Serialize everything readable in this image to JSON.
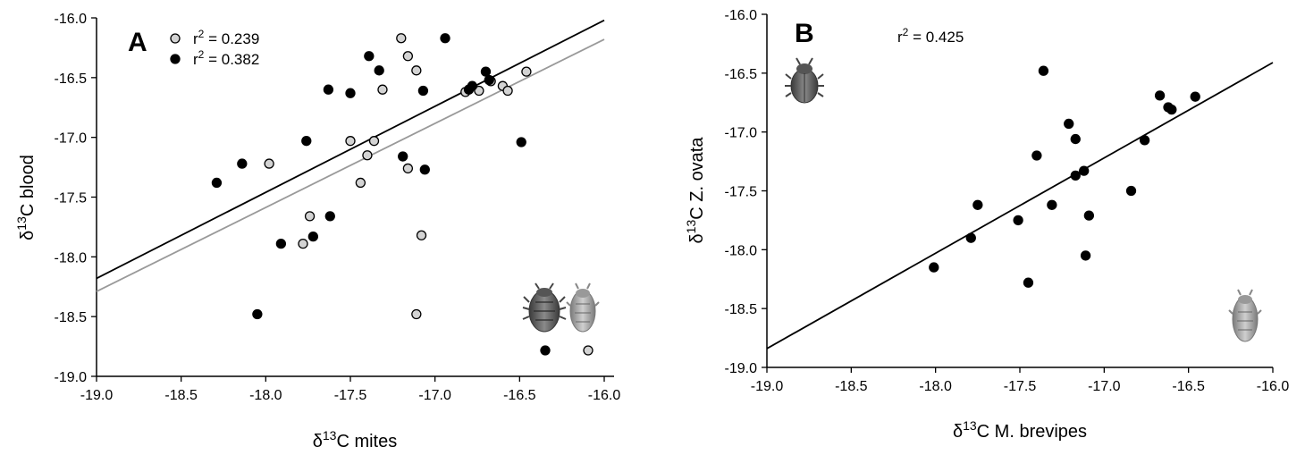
{
  "chart_data": [
    {
      "type": "scatter",
      "panel_label": "A",
      "xlabel_prefix": "δ",
      "xlabel_sup": "13",
      "xlabel_main": "C mites",
      "ylabel_prefix": "δ",
      "ylabel_sup": "13",
      "ylabel_main": "C blood",
      "xlim": [
        -19.0,
        -16.0
      ],
      "ylim": [
        -19.0,
        -16.0
      ],
      "xticks": [
        "-19.0",
        "-18.5",
        "-18.0",
        "-17.5",
        "-17.0",
        "-16.5",
        "-16.0"
      ],
      "yticks": [
        "-16.0",
        "-16.5",
        "-17.0",
        "-17.5",
        "-18.0",
        "-18.5",
        "-19.0"
      ],
      "grid": false,
      "legend": [
        {
          "prefix": "r",
          "sup": "2",
          "text": " = 0.239",
          "fill": "#d3d3d3"
        },
        {
          "prefix": "r",
          "sup": "2",
          "text": " = 0.382",
          "fill": "#000000"
        }
      ],
      "series": [
        {
          "fill": "#d3d3d3",
          "points": [
            [
              -17.2,
              -16.17
            ],
            [
              -17.16,
              -16.32
            ],
            [
              -17.11,
              -16.44
            ],
            [
              -17.31,
              -16.6
            ],
            [
              -16.46,
              -16.45
            ],
            [
              -16.6,
              -16.57
            ],
            [
              -16.57,
              -16.61
            ],
            [
              -16.74,
              -16.61
            ],
            [
              -16.82,
              -16.62
            ],
            [
              -16.67,
              -16.53
            ],
            [
              -17.5,
              -17.03
            ],
            [
              -17.36,
              -17.03
            ],
            [
              -17.4,
              -17.15
            ],
            [
              -17.16,
              -17.26
            ],
            [
              -17.44,
              -17.38
            ],
            [
              -17.98,
              -17.22
            ],
            [
              -17.74,
              -17.66
            ],
            [
              -17.78,
              -17.89
            ],
            [
              -17.08,
              -17.82
            ],
            [
              -17.11,
              -18.48
            ]
          ],
          "fit": {
            "x": [
              -19.0,
              -16.0
            ],
            "y": [
              -18.29,
              -16.18
            ],
            "color": "#999999"
          }
        },
        {
          "fill": "#000000",
          "points": [
            [
              -16.94,
              -16.17
            ],
            [
              -17.39,
              -16.32
            ],
            [
              -17.33,
              -16.44
            ],
            [
              -17.07,
              -16.61
            ],
            [
              -17.5,
              -16.63
            ],
            [
              -17.63,
              -16.6
            ],
            [
              -16.78,
              -16.57
            ],
            [
              -16.8,
              -16.6
            ],
            [
              -16.7,
              -16.45
            ],
            [
              -16.68,
              -16.52
            ],
            [
              -17.76,
              -17.03
            ],
            [
              -16.49,
              -17.04
            ],
            [
              -17.19,
              -17.16
            ],
            [
              -17.06,
              -17.27
            ],
            [
              -18.14,
              -17.22
            ],
            [
              -18.29,
              -17.38
            ],
            [
              -17.62,
              -17.66
            ],
            [
              -17.72,
              -17.83
            ],
            [
              -17.91,
              -17.89
            ],
            [
              -18.05,
              -18.48
            ]
          ],
          "fit": {
            "x": [
              -19.0,
              -16.0
            ],
            "y": [
              -18.18,
              -16.02
            ],
            "color": "#000000"
          }
        }
      ],
      "icon_markers": [
        {
          "icon": "mite-icon",
          "fill": "#000000"
        },
        {
          "icon": "mite-icon",
          "fill": "#d3d3d3"
        }
      ]
    },
    {
      "type": "scatter",
      "panel_label": "B",
      "xlabel_prefix": "δ",
      "xlabel_sup": "13",
      "xlabel_main": "C M. brevipes",
      "ylabel_prefix": "δ",
      "ylabel_sup": "13",
      "ylabel_main": "C Z. ovata",
      "xlim": [
        -19.0,
        -16.0
      ],
      "ylim": [
        -19.0,
        -16.0
      ],
      "xticks": [
        "-19.0",
        "-18.5",
        "-18.0",
        "-17.5",
        "-17.0",
        "-16.5",
        "-16.0"
      ],
      "yticks": [
        "-16.0",
        "-16.5",
        "-17.0",
        "-17.5",
        "-18.0",
        "-18.5",
        "-19.0"
      ],
      "grid": false,
      "annotation": {
        "prefix": "r",
        "sup": "2",
        "text": " = 0.425"
      },
      "series": [
        {
          "fill": "#000000",
          "points": [
            [
              -17.36,
              -16.48
            ],
            [
              -16.67,
              -16.69
            ],
            [
              -16.46,
              -16.7
            ],
            [
              -16.62,
              -16.79
            ],
            [
              -16.6,
              -16.81
            ],
            [
              -17.21,
              -16.93
            ],
            [
              -17.17,
              -17.06
            ],
            [
              -16.76,
              -17.07
            ],
            [
              -17.4,
              -17.2
            ],
            [
              -17.12,
              -17.33
            ],
            [
              -17.17,
              -17.37
            ],
            [
              -16.84,
              -17.5
            ],
            [
              -17.75,
              -17.62
            ],
            [
              -17.31,
              -17.62
            ],
            [
              -17.09,
              -17.71
            ],
            [
              -17.51,
              -17.75
            ],
            [
              -17.79,
              -17.9
            ],
            [
              -18.01,
              -18.15
            ],
            [
              -17.11,
              -18.05
            ],
            [
              -17.45,
              -18.28
            ]
          ],
          "fit": {
            "x": [
              -19.0,
              -16.0
            ],
            "y": [
              -18.84,
              -16.41
            ],
            "color": "#000000"
          }
        }
      ],
      "icon_markers": [
        {
          "icon": "beetle-icon",
          "placement": "top-left"
        },
        {
          "icon": "mite-icon",
          "placement": "bottom-right"
        }
      ]
    }
  ]
}
